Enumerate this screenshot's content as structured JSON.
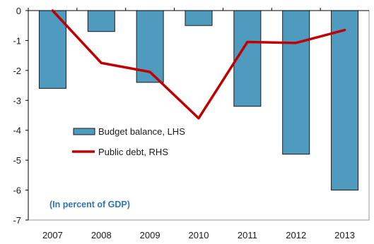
{
  "chart_data": {
    "type": "bar",
    "categories": [
      "2007",
      "2008",
      "2009",
      "2010",
      "2011",
      "2012",
      "2013"
    ],
    "series": [
      {
        "name": "Budget balance, LHS",
        "kind": "bar",
        "values": [
          -2.6,
          -0.7,
          -2.4,
          -0.5,
          -3.2,
          -4.8,
          -6.0
        ],
        "color": "#4f9bbf"
      },
      {
        "name": "Public debt, RHS",
        "kind": "line",
        "values": [
          0.0,
          -1.75,
          -2.05,
          -3.6,
          -1.05,
          -1.08,
          -0.65
        ],
        "color": "#c00000"
      }
    ],
    "title": "",
    "xlabel": "",
    "ylabel": "",
    "ylim": [
      -7,
      0
    ],
    "yticks": [
      "0",
      "-1",
      "-2",
      "-3",
      "-4",
      "-5",
      "-6",
      "-7"
    ],
    "annotation": "(In percent of GDP)",
    "legend_position": "lower-left",
    "grid": false
  }
}
